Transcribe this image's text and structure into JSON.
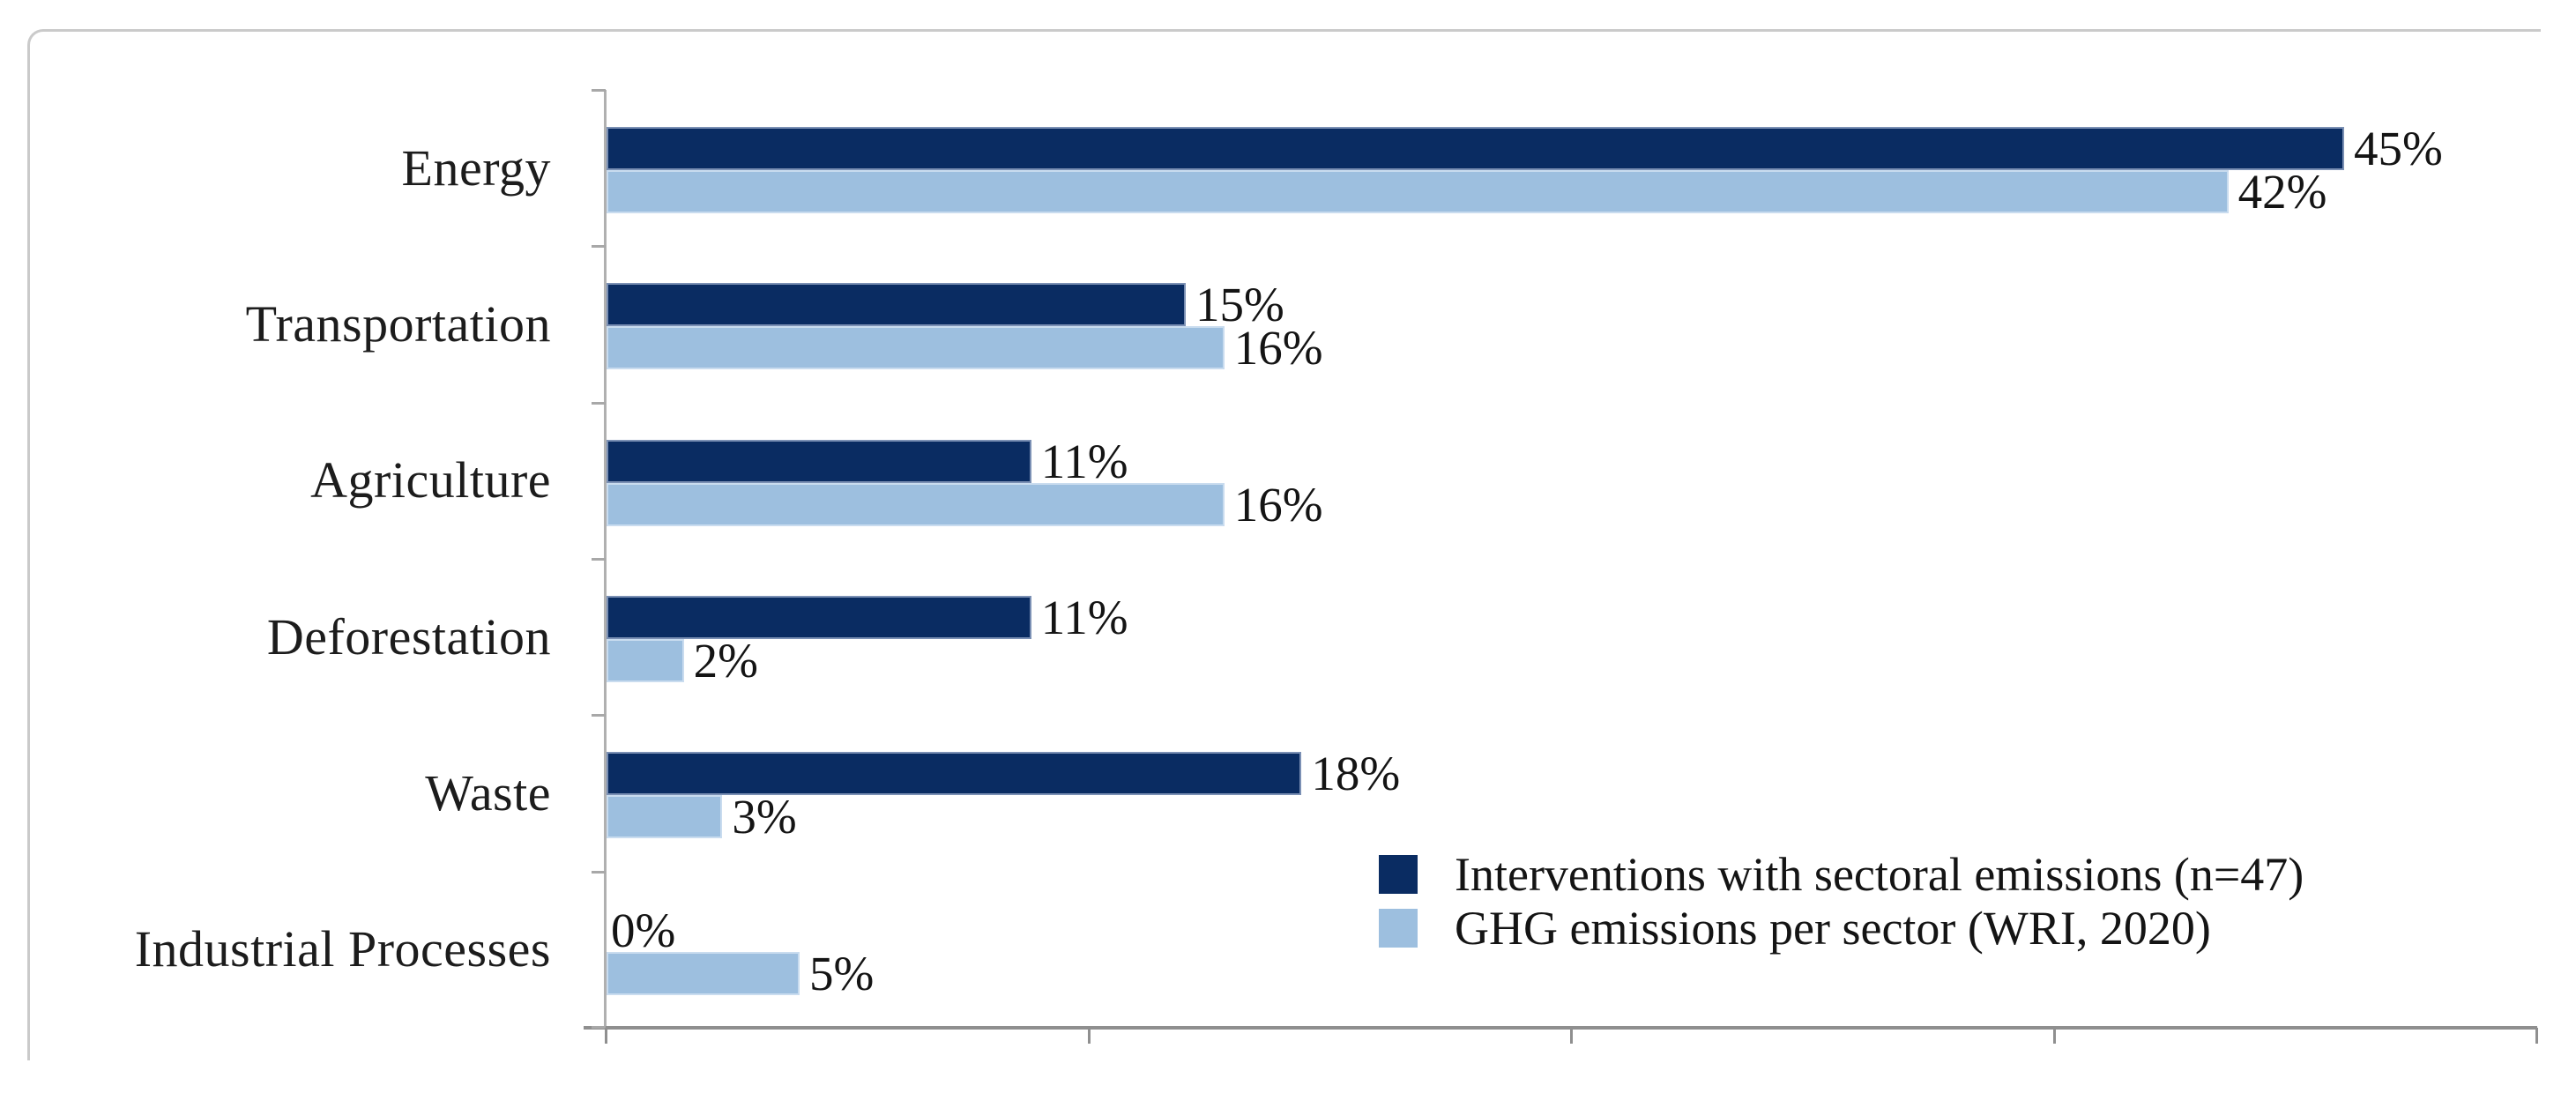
{
  "chart_data": {
    "type": "bar",
    "orientation": "horizontal",
    "title": "",
    "categories": [
      "Energy",
      "Transportation",
      "Agriculture",
      "Deforestation",
      "Waste",
      "Industrial Processes"
    ],
    "series": [
      {
        "name": "Interventions with sectoral emissions (n=47)",
        "color": "#0a2c62",
        "values": [
          45,
          15,
          11,
          11,
          18,
          0
        ]
      },
      {
        "name": "GHG emissions per sector (WRI, 2020)",
        "color": "#9dbfdf",
        "values": [
          42,
          16,
          16,
          2,
          3,
          5
        ]
      }
    ],
    "value_suffix": "%",
    "data_labels": true,
    "xlim": [
      0,
      50
    ],
    "x_tick_interval": 12.5,
    "gridlines": false,
    "legend_position": "inside-bottom-right",
    "colors": {
      "axis": "#8f8f8f",
      "tick": "#a8a8a8",
      "frame_border": "#cacaca",
      "label_text": "#141414"
    }
  }
}
